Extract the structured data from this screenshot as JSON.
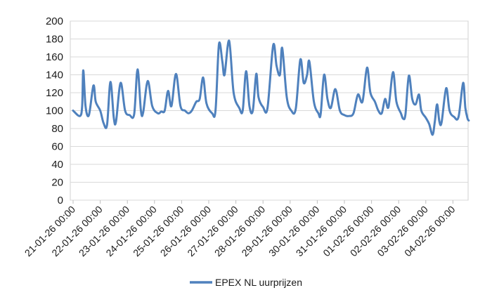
{
  "chart_data": {
    "type": "line",
    "title": "",
    "xlabel": "",
    "ylabel": "",
    "ylim": [
      0,
      200
    ],
    "yticks": [
      0,
      20,
      40,
      60,
      80,
      100,
      120,
      140,
      160,
      180,
      200
    ],
    "grid": true,
    "legend_position": "bottom",
    "line_color": "#4f81bd",
    "x_tick_labels": [
      "21-01-26 00:00",
      "22-01-26 00:00",
      "23-01-26 00:00",
      "24-01-26 00:00",
      "25-01-26 00:00",
      "26-01-26 00:00",
      "27-01-26 00:00",
      "28-01-26 00:00",
      "29-01-26 00:00",
      "30-01-26 00:00",
      "31-01-26 00:00",
      "01-02-26 00:00",
      "02-02-26 00:00",
      "03-02-26 00:00",
      "04-02-26 00:00"
    ],
    "series": [
      {
        "name": "EPEX NL uurprijzen",
        "points": [
          [
            "21-01-26 00:00",
            100
          ],
          [
            "21-01-26 06:00",
            94
          ],
          [
            "21-01-26 08:00",
            105
          ],
          [
            "21-01-26 09:00",
            145
          ],
          [
            "21-01-26 11:00",
            105
          ],
          [
            "21-01-26 14:00",
            95
          ],
          [
            "21-01-26 18:00",
            128
          ],
          [
            "21-01-26 20:00",
            110
          ],
          [
            "22-01-26 00:00",
            100
          ],
          [
            "22-01-26 03:00",
            86
          ],
          [
            "22-01-26 06:00",
            84
          ],
          [
            "22-01-26 09:00",
            132
          ],
          [
            "22-01-26 12:00",
            92
          ],
          [
            "22-01-26 14:00",
            88
          ],
          [
            "22-01-26 18:00",
            131
          ],
          [
            "22-01-26 22:00",
            100
          ],
          [
            "23-01-26 02:00",
            95
          ],
          [
            "23-01-26 06:00",
            96
          ],
          [
            "23-01-26 09:00",
            146
          ],
          [
            "23-01-26 12:00",
            100
          ],
          [
            "23-01-26 14:00",
            98
          ],
          [
            "23-01-26 18:00",
            133
          ],
          [
            "23-01-26 22:00",
            105
          ],
          [
            "24-01-26 03:00",
            97
          ],
          [
            "24-01-26 06:00",
            99
          ],
          [
            "24-01-26 09:00",
            100
          ],
          [
            "24-01-26 12:00",
            122
          ],
          [
            "24-01-26 15:00",
            105
          ],
          [
            "24-01-26 19:00",
            141
          ],
          [
            "24-01-26 23:00",
            105
          ],
          [
            "25-01-26 03:00",
            100
          ],
          [
            "25-01-26 06:00",
            97
          ],
          [
            "25-01-26 09:00",
            100
          ],
          [
            "25-01-26 13:00",
            110
          ],
          [
            "25-01-26 16:00",
            113
          ],
          [
            "25-01-26 19:00",
            137
          ],
          [
            "25-01-26 22:00",
            108
          ],
          [
            "26-01-26 03:00",
            97
          ],
          [
            "26-01-26 06:00",
            100
          ],
          [
            "26-01-26 09:00",
            174
          ],
          [
            "26-01-26 12:00",
            155
          ],
          [
            "26-01-26 14:00",
            140
          ],
          [
            "26-01-26 18:00",
            178
          ],
          [
            "26-01-26 22:00",
            120
          ],
          [
            "27-01-26 03:00",
            103
          ],
          [
            "27-01-26 06:00",
            100
          ],
          [
            "27-01-26 09:00",
            144
          ],
          [
            "27-01-26 12:00",
            105
          ],
          [
            "27-01-26 15:00",
            100
          ],
          [
            "27-01-26 18:00",
            141
          ],
          [
            "27-01-26 20:00",
            115
          ],
          [
            "28-01-26 00:00",
            104
          ],
          [
            "28-01-26 04:00",
            103
          ],
          [
            "28-01-26 09:00",
            173
          ],
          [
            "28-01-26 12:00",
            150
          ],
          [
            "28-01-26 15:00",
            140
          ],
          [
            "28-01-26 17:00",
            170
          ],
          [
            "28-01-26 21:00",
            115
          ],
          [
            "29-01-26 01:00",
            100
          ],
          [
            "29-01-26 05:00",
            102
          ],
          [
            "29-01-26 09:00",
            157
          ],
          [
            "29-01-26 12:00",
            131
          ],
          [
            "29-01-26 15:00",
            140
          ],
          [
            "29-01-26 17:00",
            155
          ],
          [
            "29-01-26 21:00",
            110
          ],
          [
            "30-01-26 01:00",
            97
          ],
          [
            "30-01-26 03:00",
            96
          ],
          [
            "30-01-26 06:00",
            140
          ],
          [
            "30-01-26 09:00",
            113
          ],
          [
            "30-01-26 12:00",
            103
          ],
          [
            "30-01-26 16:00",
            124
          ],
          [
            "30-01-26 20:00",
            100
          ],
          [
            "31-01-26 00:00",
            95
          ],
          [
            "31-01-26 04:00",
            94
          ],
          [
            "31-01-26 08:00",
            97
          ],
          [
            "31-01-26 12:00",
            118
          ],
          [
            "31-01-26 16:00",
            110
          ],
          [
            "31-01-26 20:00",
            148
          ],
          [
            "31-01-26 23:00",
            120
          ],
          [
            "01-02-26 03:00",
            110
          ],
          [
            "01-02-26 06:00",
            100
          ],
          [
            "01-02-26 09:00",
            97
          ],
          [
            "01-02-26 12:00",
            113
          ],
          [
            "01-02-26 15:00",
            104
          ],
          [
            "01-02-26 19:00",
            143
          ],
          [
            "01-02-26 22:00",
            110
          ],
          [
            "02-02-26 02:00",
            97
          ],
          [
            "02-02-26 04:00",
            91
          ],
          [
            "02-02-26 06:00",
            96
          ],
          [
            "02-02-26 09:00",
            139
          ],
          [
            "02-02-26 12:00",
            113
          ],
          [
            "02-02-26 15:00",
            107
          ],
          [
            "02-02-26 18:00",
            118
          ],
          [
            "02-02-26 20:00",
            100
          ],
          [
            "03-02-26 00:00",
            92
          ],
          [
            "03-02-26 03:00",
            85
          ],
          [
            "03-02-26 06:00",
            73
          ],
          [
            "03-02-26 08:00",
            88
          ],
          [
            "03-02-26 10:00",
            107
          ],
          [
            "03-02-26 12:00",
            88
          ],
          [
            "03-02-26 14:00",
            87
          ],
          [
            "03-02-26 18:00",
            125
          ],
          [
            "03-02-26 21:00",
            100
          ],
          [
            "04-02-26 01:00",
            93
          ],
          [
            "04-02-26 05:00",
            93
          ],
          [
            "04-02-26 09:00",
            131
          ],
          [
            "04-02-26 11:00",
            103
          ],
          [
            "04-02-26 13:00",
            91
          ],
          [
            "04-02-26 14:00",
            89
          ]
        ]
      }
    ]
  }
}
